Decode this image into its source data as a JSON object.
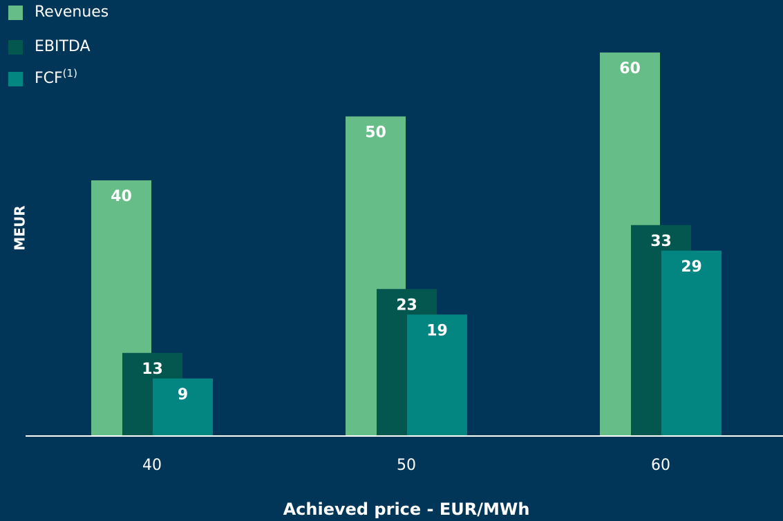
{
  "chart_data": {
    "type": "bar",
    "categories": [
      "40",
      "50",
      "60"
    ],
    "x_label": "Achieved price - EUR/MWh",
    "y_label": "MEUR",
    "ylim": [
      0,
      60
    ],
    "series": [
      {
        "name": "Revenues",
        "color": "#66bd87",
        "values": [
          40,
          50,
          60
        ]
      },
      {
        "name": "EBITDA",
        "color": "#04574f",
        "values": [
          13,
          23,
          33
        ]
      },
      {
        "name": "FCF",
        "name_superscript": "(1)",
        "color": "#038582",
        "values": [
          9,
          19,
          29
        ]
      }
    ],
    "legend": "top-left",
    "background": "#023658"
  }
}
